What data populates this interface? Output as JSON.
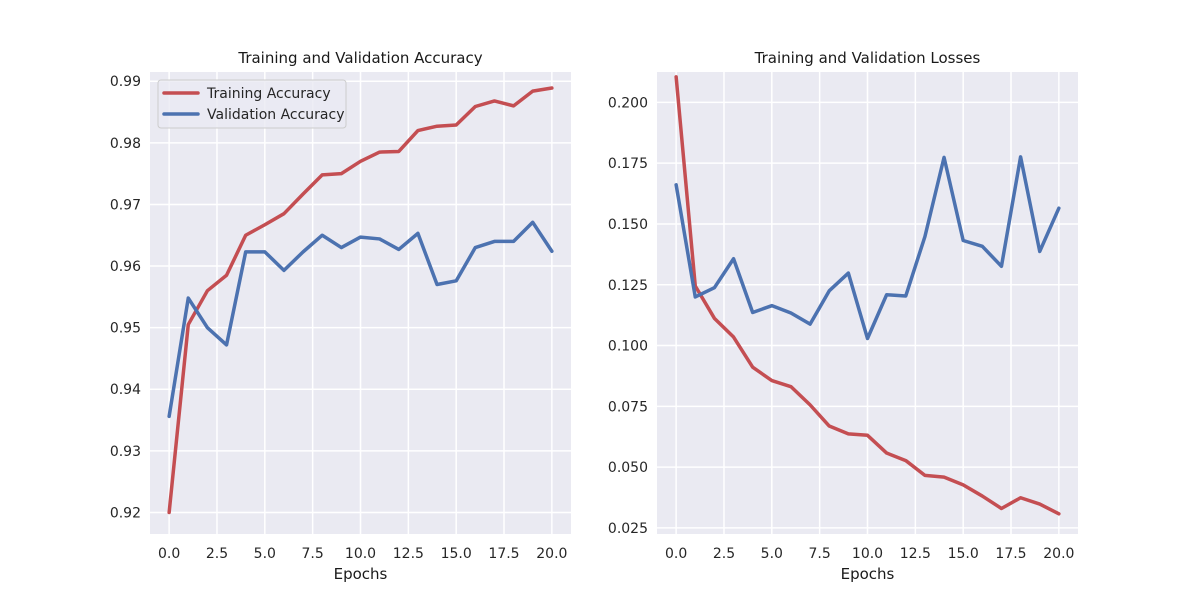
{
  "chart_data": [
    {
      "type": "line",
      "title": "Training and Validation Accuracy",
      "xlabel": "Epochs",
      "ylabel": "",
      "xlim": [
        -1,
        21
      ],
      "ylim": [
        0.9165,
        0.9915
      ],
      "xticks": [
        0,
        2.5,
        5,
        7.5,
        10,
        12.5,
        15,
        17.5,
        20
      ],
      "xtick_labels": [
        "0.0",
        "2.5",
        "5.0",
        "7.5",
        "10.0",
        "12.5",
        "15.0",
        "17.5",
        "20.0"
      ],
      "yticks": [
        0.92,
        0.93,
        0.94,
        0.95,
        0.96,
        0.97,
        0.98,
        0.99
      ],
      "ytick_labels": [
        "0.92",
        "0.93",
        "0.94",
        "0.95",
        "0.96",
        "0.97",
        "0.98",
        "0.99"
      ],
      "grid": true,
      "legend_position": "top-left",
      "x": [
        0,
        1,
        2,
        3,
        4,
        5,
        6,
        7,
        8,
        9,
        10,
        11,
        12,
        13,
        14,
        15,
        16,
        17,
        18,
        19,
        20
      ],
      "series": [
        {
          "name": "Training Accuracy",
          "color": "#c44e52",
          "values": [
            0.92,
            0.9505,
            0.956,
            0.9585,
            0.965,
            0.9667,
            0.9685,
            0.9717,
            0.9748,
            0.975,
            0.977,
            0.9785,
            0.9786,
            0.982,
            0.9827,
            0.9829,
            0.9859,
            0.9868,
            0.986,
            0.9884,
            0.9889
          ]
        },
        {
          "name": "Validation Accuracy",
          "color": "#4c72b0",
          "values": [
            0.9356,
            0.9548,
            0.95,
            0.9472,
            0.9623,
            0.9623,
            0.9593,
            0.9623,
            0.965,
            0.963,
            0.9647,
            0.9644,
            0.9627,
            0.9653,
            0.957,
            0.9576,
            0.963,
            0.964,
            0.964,
            0.9671,
            0.9624
          ]
        }
      ]
    },
    {
      "type": "line",
      "title": "Training and Validation Losses",
      "xlabel": "Epochs",
      "ylabel": "",
      "xlim": [
        -1,
        21
      ],
      "ylim": [
        0.0225,
        0.2125
      ],
      "xticks": [
        0,
        2.5,
        5,
        7.5,
        10,
        12.5,
        15,
        17.5,
        20
      ],
      "xtick_labels": [
        "0.0",
        "2.5",
        "5.0",
        "7.5",
        "10.0",
        "12.5",
        "15.0",
        "17.5",
        "20.0"
      ],
      "yticks": [
        0.025,
        0.05,
        0.075,
        0.1,
        0.125,
        0.15,
        0.175,
        0.2
      ],
      "ytick_labels": [
        "0.025",
        "0.050",
        "0.075",
        "0.100",
        "0.125",
        "0.150",
        "0.175",
        "0.200"
      ],
      "grid": true,
      "legend_position": "none",
      "x": [
        0,
        1,
        2,
        3,
        4,
        5,
        6,
        7,
        8,
        9,
        10,
        11,
        12,
        13,
        14,
        15,
        16,
        17,
        18,
        19,
        20
      ],
      "series": [
        {
          "color": "#c44e52",
          "values": [
            0.2105,
            0.1245,
            0.1112,
            0.1035,
            0.0911,
            0.0856,
            0.0831,
            0.0756,
            0.0669,
            0.0637,
            0.0631,
            0.0558,
            0.0527,
            0.0466,
            0.0459,
            0.0427,
            0.0381,
            0.033,
            0.0374,
            0.0348,
            0.0308
          ]
        },
        {
          "color": "#4c72b0",
          "values": [
            0.1661,
            0.12,
            0.1238,
            0.1357,
            0.1136,
            0.1164,
            0.1134,
            0.1088,
            0.1225,
            0.1298,
            0.1029,
            0.1209,
            0.1204,
            0.1448,
            0.1774,
            0.1432,
            0.1408,
            0.1326,
            0.1776,
            0.1387,
            0.1565
          ]
        }
      ]
    }
  ],
  "colors": {
    "plot_background": "#eaeaf2",
    "grid": "#ffffff"
  }
}
